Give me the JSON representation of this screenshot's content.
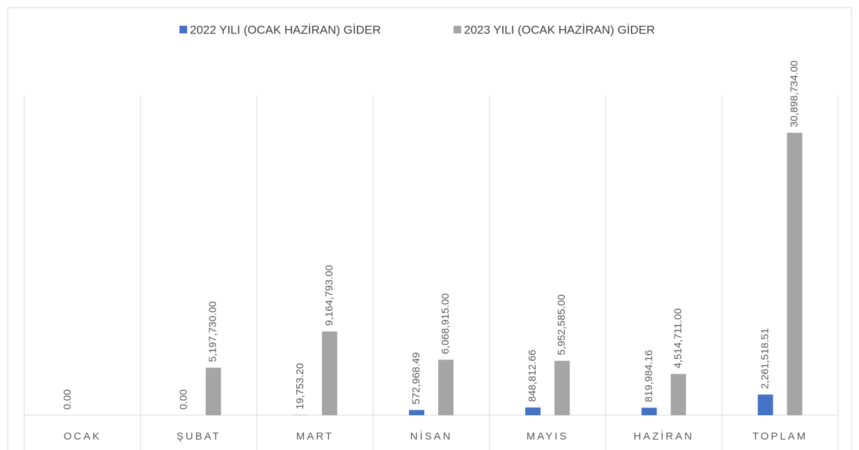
{
  "chart_data": {
    "type": "bar",
    "categories": [
      "OCAK",
      "ŞUBAT",
      "MART",
      "NİSAN",
      "MAYIS",
      "HAZİRAN",
      "TOPLAM"
    ],
    "series": [
      {
        "name": "2022 YILI (OCAK HAZİRAN) GİDER",
        "color": "#4472c4",
        "values": [
          0,
          0,
          19753.2,
          572968.49,
          848812.66,
          819984.16,
          2261518.51
        ],
        "value_labels": [
          "0.00",
          "0.00",
          "19,753.20",
          "572,968.49",
          "848,812.66",
          "819,984.16",
          "2,261,518.51"
        ]
      },
      {
        "name": "2023 YILI (OCAK HAZİRAN) GİDER",
        "color": "#a5a5a5",
        "values": [
          null,
          5197730,
          9164793,
          6068915,
          5952585,
          4514711,
          30898734
        ],
        "value_labels": [
          null,
          "5,197,730.00",
          "9,164,793.00",
          "6,068,915.00",
          "5,952,585.00",
          "4,514,711.00",
          "30,898,734.00"
        ]
      }
    ],
    "ylim": [
      0,
      35000000
    ],
    "legend": "top"
  }
}
